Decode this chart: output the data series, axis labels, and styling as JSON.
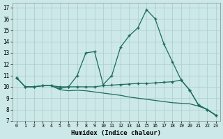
{
  "xlabel": "Humidex (Indice chaleur)",
  "bg_color": "#cce8e8",
  "grid_color": "#aacccc",
  "line_color": "#1a6b5a",
  "xlim": [
    -0.5,
    23.5
  ],
  "ylim": [
    7,
    17.4
  ],
  "xticks": [
    0,
    1,
    2,
    3,
    4,
    5,
    6,
    7,
    8,
    9,
    10,
    11,
    12,
    13,
    14,
    15,
    16,
    17,
    18,
    19,
    20,
    21,
    22,
    23
  ],
  "yticks": [
    7,
    8,
    9,
    10,
    11,
    12,
    13,
    14,
    15,
    16,
    17
  ],
  "line1_x": [
    0,
    1,
    2,
    3,
    4,
    5,
    6,
    7,
    8,
    9,
    10,
    11,
    12,
    13,
    14,
    15,
    16,
    17,
    18,
    19,
    20,
    21,
    22,
    23
  ],
  "line1_y": [
    10.8,
    10.0,
    10.0,
    10.1,
    10.1,
    10.0,
    10.0,
    11.0,
    13.0,
    13.1,
    10.2,
    11.0,
    13.5,
    14.5,
    15.2,
    16.8,
    16.0,
    13.8,
    12.2,
    10.6,
    9.7,
    8.4,
    8.0,
    7.5
  ],
  "line2_x": [
    0,
    1,
    2,
    3,
    4,
    5,
    6,
    7,
    8,
    9,
    10,
    11,
    12,
    13,
    14,
    15,
    16,
    17,
    18,
    19,
    20,
    21,
    22,
    23
  ],
  "line2_y": [
    10.8,
    10.0,
    10.0,
    10.1,
    10.1,
    9.85,
    10.0,
    10.0,
    10.0,
    10.0,
    10.1,
    10.15,
    10.2,
    10.25,
    10.3,
    10.3,
    10.35,
    10.4,
    10.45,
    10.6,
    9.7,
    8.4,
    8.0,
    7.5
  ],
  "line3_x": [
    0,
    1,
    2,
    3,
    4,
    5,
    6,
    7,
    8,
    9,
    10,
    11,
    12,
    13,
    14,
    15,
    16,
    17,
    18,
    19,
    20,
    21,
    22,
    23
  ],
  "line3_y": [
    10.8,
    10.0,
    10.0,
    10.1,
    10.1,
    9.75,
    9.65,
    9.7,
    9.65,
    9.55,
    9.45,
    9.35,
    9.25,
    9.1,
    9.0,
    8.9,
    8.8,
    8.7,
    8.6,
    8.55,
    8.5,
    8.3,
    8.0,
    7.5
  ]
}
